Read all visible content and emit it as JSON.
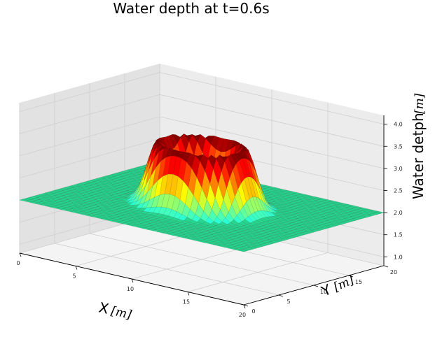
{
  "chart_data": {
    "type": "surface3d",
    "title": "Water depth at t=0.6s",
    "xlabel": "X",
    "xunit": "[m]",
    "ylabel": "Y",
    "yunit": "[m]",
    "zlabel": "Water detph",
    "zunit": "[m]",
    "xlim": [
      0,
      20
    ],
    "ylim": [
      0,
      20
    ],
    "zlim": [
      0.8,
      4.2
    ],
    "x_ticks": [
      0,
      5,
      10,
      15,
      20
    ],
    "y_ticks": [
      0,
      5,
      10,
      15,
      20
    ],
    "z_ticks": [
      "1.0",
      "1.5",
      "2.0",
      "2.5",
      "3.0",
      "3.5",
      "4.0"
    ],
    "surface": {
      "base_depth": 2.0,
      "ring_center": [
        10,
        10
      ],
      "ring_radius": 3.3,
      "ring_peak_depth": 3.4,
      "ring_width": 1.2,
      "center_depth": 1.9,
      "colormap": "jet"
    },
    "grid": true,
    "colors": {
      "pane_back": "#ececec",
      "pane_side": "#e2e2e2",
      "pane_floor": "#f4f4f4",
      "grid": "#cfcfcf"
    }
  }
}
